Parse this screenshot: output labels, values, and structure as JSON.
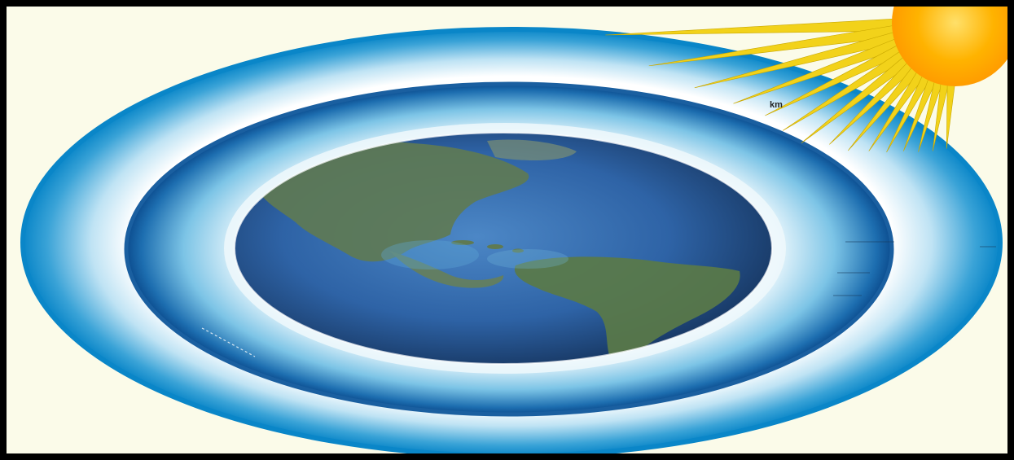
{
  "illustration": {
    "label": "km",
    "colors": {
      "background": "#fbfbe9",
      "frame": "#000000",
      "atmosphere_outer": "#0a86c8",
      "atmosphere_inner": "#1a5fa0",
      "ocean": "#2f66a8",
      "land": "#5f7a52",
      "sun_core": "#ffb300",
      "sun_rays": "#f2d21a"
    },
    "icons": [
      "sun-icon",
      "earth-globe-icon"
    ]
  }
}
